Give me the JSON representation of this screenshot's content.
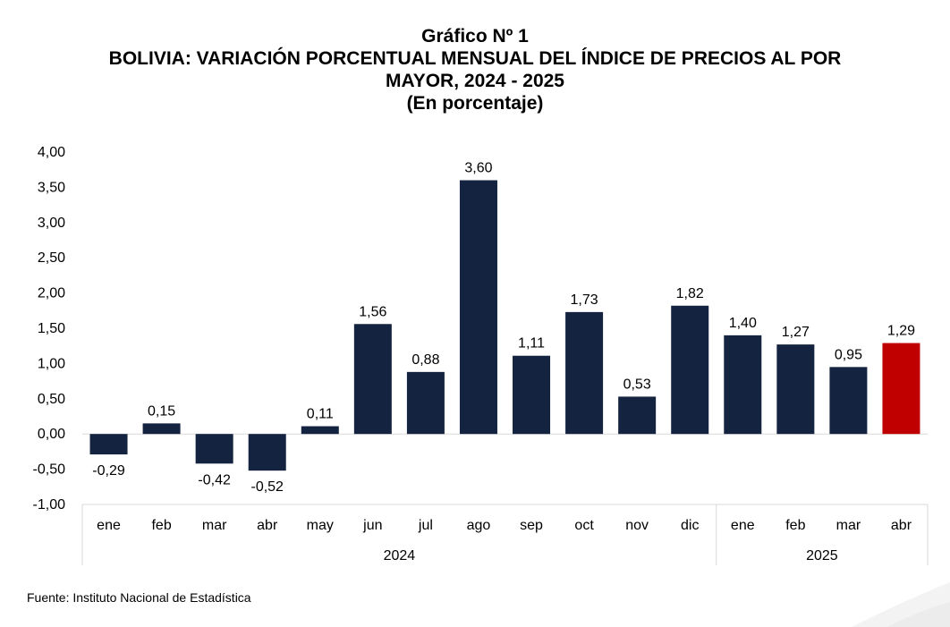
{
  "chart_data": {
    "type": "bar",
    "title_lines": [
      "Gráfico Nº 1",
      "BOLIVIA: VARIACIÓN PORCENTUAL MENSUAL DEL ÍNDICE DE PRECIOS AL POR",
      "MAYOR, 2024 - 2025",
      "(En porcentaje)"
    ],
    "categories": [
      "ene",
      "feb",
      "mar",
      "abr",
      "may",
      "jun",
      "jul",
      "ago",
      "sep",
      "oct",
      "nov",
      "dic",
      "ene",
      "feb",
      "mar",
      "abr"
    ],
    "values": [
      -0.29,
      0.15,
      -0.42,
      -0.52,
      0.11,
      1.56,
      0.88,
      3.6,
      1.11,
      1.73,
      0.53,
      1.82,
      1.4,
      1.27,
      0.95,
      1.29
    ],
    "value_labels": [
      "-0,29",
      "0,15",
      "-0,42",
      "-0,52",
      "0,11",
      "1,56",
      "0,88",
      "3,60",
      "1,11",
      "1,73",
      "0,53",
      "1,82",
      "1,40",
      "1,27",
      "0,95",
      "1,29"
    ],
    "groups": [
      {
        "label": "2024",
        "count": 12
      },
      {
        "label": "2025",
        "count": 4
      }
    ],
    "ylim": [
      -1.0,
      4.0
    ],
    "yticks": [
      4.0,
      3.5,
      3.0,
      2.5,
      2.0,
      1.5,
      1.0,
      0.5,
      0.0,
      -0.5,
      -1.0
    ],
    "ytick_labels": [
      "4,00",
      "3,50",
      "3,00",
      "2,50",
      "2,00",
      "1,50",
      "1,00",
      "0,50",
      "0,00",
      "-0,50",
      "-1,00"
    ],
    "grid": false,
    "bar_color": "#14233f",
    "highlight_color": "#c00000",
    "highlight_index": 15
  },
  "footer": {
    "source": "Fuente: Instituto Nacional de Estadística"
  }
}
